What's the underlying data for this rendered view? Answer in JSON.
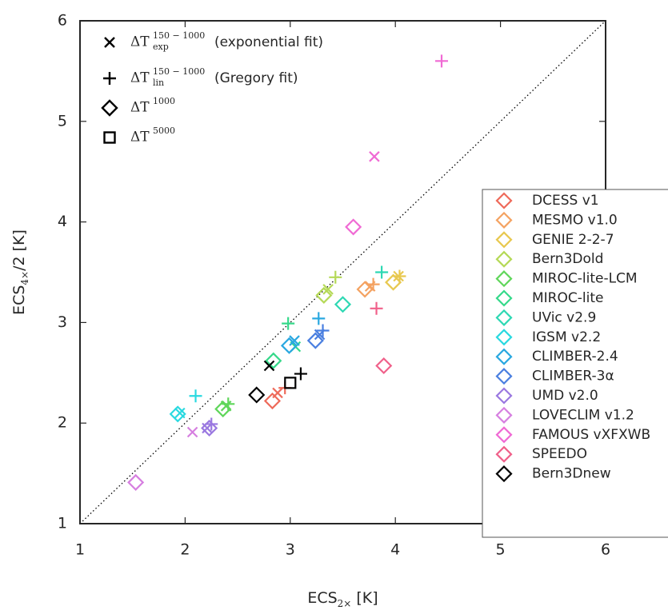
{
  "chart_data": {
    "type": "scatter",
    "xlabel": [
      "ECS",
      "2×",
      " [K]"
    ],
    "ylabel": [
      "ECS",
      "4×",
      "/2 [K]"
    ],
    "xlim": [
      1,
      6
    ],
    "ylim": [
      1,
      6
    ],
    "xticks": [
      1,
      2,
      3,
      4,
      5,
      6
    ],
    "yticks": [
      1,
      2,
      3,
      4,
      5,
      6
    ],
    "identity_line": true,
    "marker_legend": [
      {
        "marker": "exp",
        "label": [
          "ΔT",
          "150 − 1000",
          "exp",
          " (exponential fit)"
        ]
      },
      {
        "marker": "lin",
        "label": [
          "ΔT",
          "150 − 1000",
          "lin",
          " (Gregory fit)"
        ]
      },
      {
        "marker": "t1000",
        "label": [
          "ΔT",
          "1000"
        ]
      },
      {
        "marker": "t5000",
        "label": [
          "ΔT",
          "5000"
        ]
      }
    ],
    "series": [
      {
        "name": "DCESS v1",
        "color": "#ee6a5a",
        "exp": [
          2.88,
          2.3
        ],
        "lin": [
          2.95,
          2.35
        ],
        "t1000": [
          2.83,
          2.22
        ]
      },
      {
        "name": "MESMO v1.0",
        "color": "#f4a261",
        "exp": [
          3.76,
          3.36
        ],
        "lin": [
          3.79,
          3.38
        ],
        "t1000": [
          3.71,
          3.33
        ]
      },
      {
        "name": "GENIE 2-2-7",
        "color": "#e8c84f",
        "exp": [
          4.03,
          3.46
        ],
        "lin": [
          4.04,
          3.46
        ],
        "t1000": [
          3.98,
          3.4
        ]
      },
      {
        "name": "Bern3Dold",
        "color": "#b5d957",
        "exp": [
          3.36,
          3.33
        ],
        "lin": [
          3.43,
          3.45
        ],
        "t1000": [
          3.32,
          3.27
        ]
      },
      {
        "name": "MIROC-lite-LCM",
        "color": "#5fd65a",
        "exp": [
          2.39,
          2.17
        ],
        "lin": [
          2.41,
          2.19
        ],
        "t1000": [
          2.36,
          2.14
        ]
      },
      {
        "name": "MIROC-lite",
        "color": "#35d98a",
        "exp": [
          3.05,
          2.76
        ],
        "lin": [
          2.98,
          2.99
        ],
        "t1000": [
          2.84,
          2.62
        ]
      },
      {
        "name": "UVic v2.9",
        "color": "#2dd8b3",
        "lin": [
          3.87,
          3.5
        ],
        "t1000": [
          3.5,
          3.18
        ]
      },
      {
        "name": "IGSM v2.2",
        "color": "#2ad9e0",
        "exp": [
          1.95,
          2.1
        ],
        "lin": [
          2.1,
          2.27
        ],
        "t1000": [
          1.93,
          2.09
        ]
      },
      {
        "name": "CLIMBER-2.4",
        "color": "#2aa8e0",
        "exp": [
          3.04,
          2.82
        ],
        "lin": [
          3.27,
          3.04
        ],
        "t1000": [
          2.99,
          2.77
        ]
      },
      {
        "name": "CLIMBER-3α",
        "color": "#4a7fe0",
        "exp": [
          3.28,
          2.88
        ],
        "lin": [
          3.31,
          2.92
        ],
        "t1000": [
          3.24,
          2.82
        ]
      },
      {
        "name": "UMD v2.0",
        "color": "#9a78e0",
        "exp": [
          2.21,
          1.95
        ],
        "lin": [
          2.25,
          1.99
        ],
        "t1000": [
          2.23,
          1.95
        ]
      },
      {
        "name": "LOVECLIM v1.2",
        "color": "#d67fe0",
        "exp": [
          2.07,
          1.91
        ],
        "t1000": [
          1.53,
          1.41
        ]
      },
      {
        "name": "FAMOUS vXFXWB",
        "color": "#f06ad4",
        "exp": [
          3.8,
          4.65
        ],
        "lin": [
          4.44,
          5.6
        ],
        "t1000": [
          3.6,
          3.95
        ]
      },
      {
        "name": "SPEEDO",
        "color": "#f0608a",
        "lin": [
          3.82,
          3.14
        ],
        "t1000": [
          3.89,
          2.57
        ]
      },
      {
        "name": "Bern3Dnew",
        "color": "#000000",
        "exp": [
          2.8,
          2.57
        ],
        "lin": [
          3.1,
          2.49
        ],
        "t1000": [
          2.68,
          2.28
        ],
        "t5000": [
          3.0,
          2.4
        ]
      }
    ]
  }
}
